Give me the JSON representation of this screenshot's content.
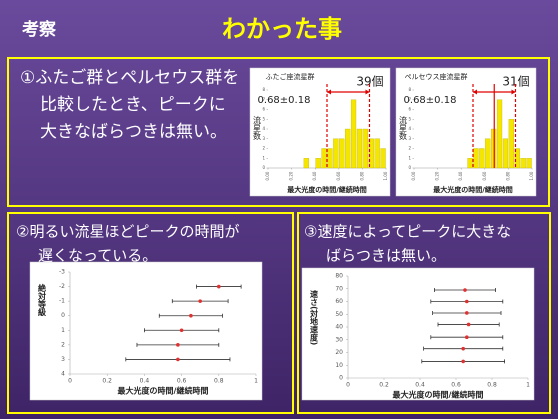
{
  "header": {
    "section": "考察",
    "title": "わかった事"
  },
  "panels": [
    {
      "lines": [
        "①ふたご群とペルセウス群を",
        "比較したとき、ピークに",
        "大きなばらつきは無い。"
      ]
    },
    {
      "lines": [
        "②明るい流星ほどピークの時間が",
        "遅くなっている。"
      ]
    },
    {
      "lines": [
        "③速度によってピークに大きな",
        "ばらつきは無い。"
      ]
    }
  ],
  "chart_data": [
    {
      "type": "histogram",
      "title": "ふたご座流星群",
      "count_label": "39個",
      "annotation": "0.68±0.18",
      "ylabel": "流星数",
      "xlabel": "最大光度の時間/継続時間",
      "bins": [
        0,
        0.05,
        0.1,
        0.15,
        0.2,
        0.25,
        0.3,
        0.35,
        0.4,
        0.45,
        0.5,
        0.55,
        0.6,
        0.65,
        0.7,
        0.75,
        0.8,
        0.85,
        0.9,
        0.95,
        1
      ],
      "counts": [
        0,
        0,
        0,
        0,
        0,
        0,
        1,
        0,
        1,
        2,
        2,
        3,
        3,
        4,
        7,
        4,
        4,
        3,
        3,
        2
      ],
      "color": "#f5e600",
      "xlim": [
        0,
        1
      ],
      "ylim": [
        0,
        8
      ],
      "yticks": [
        0,
        1,
        2,
        3,
        4,
        5,
        6,
        7,
        8
      ],
      "xticks": [
        {
          "value": 0,
          "label": "0.00"
        },
        {
          "value": 0.2,
          "label": "0.20"
        },
        {
          "value": 0.4,
          "label": "0.40"
        },
        {
          "value": 0.6,
          "label": "0.60"
        },
        {
          "value": 0.8,
          "label": "0.80"
        },
        {
          "value": 1,
          "label": "1.00"
        }
      ],
      "ref_lines": [
        0.5,
        0.86
      ],
      "ref_color": "#e00000"
    },
    {
      "type": "histogram",
      "title": "ペルセウス座流星群",
      "count_label": "31個",
      "annotation": "0.68±0.18",
      "ylabel": "流星数",
      "xlabel": "最大光度の時間/継続時間",
      "bins": [
        0,
        0.05,
        0.1,
        0.15,
        0.2,
        0.25,
        0.3,
        0.35,
        0.4,
        0.45,
        0.5,
        0.55,
        0.6,
        0.65,
        0.7,
        0.75,
        0.8,
        0.85,
        0.9,
        0.95,
        1
      ],
      "counts": [
        0,
        0,
        0,
        0,
        0,
        0,
        0,
        0,
        0,
        1,
        2,
        2,
        3,
        4,
        7,
        3,
        5,
        2,
        1,
        1
      ],
      "color": "#f5e600",
      "xlim": [
        0,
        1
      ],
      "ylim": [
        0,
        8
      ],
      "yticks": [
        0,
        1,
        2,
        3,
        4,
        5,
        6,
        7,
        8
      ],
      "xticks": [
        {
          "value": 0,
          "label": "0.00"
        },
        {
          "value": 0.2,
          "label": "0.20"
        },
        {
          "value": 0.4,
          "label": "0.40"
        },
        {
          "value": 0.6,
          "label": "0.60"
        },
        {
          "value": 0.8,
          "label": "0.80"
        },
        {
          "value": 1,
          "label": "1.00"
        }
      ],
      "ref_lines": [
        0.5,
        0.68,
        0.86
      ],
      "ref_color": "#e00000"
    },
    {
      "type": "errorbar",
      "ylabel": "絶対等級",
      "xlabel": "最大光度の時間/継続時間",
      "x": [
        0.8,
        0.7,
        0.65,
        0.6,
        0.58,
        0.58
      ],
      "xerr": [
        0.12,
        0.15,
        0.17,
        0.2,
        0.22,
        0.28
      ],
      "y": [
        -2,
        -1,
        0,
        1,
        2,
        3
      ],
      "color": "#e03030",
      "bar_color": "#333333",
      "xlim": [
        0,
        1
      ],
      "xticks": [
        0,
        0.2,
        0.4,
        0.6,
        0.8,
        1
      ],
      "ylim": [
        4,
        -3
      ],
      "yticks": [
        -3,
        -2,
        -1,
        0,
        1,
        2,
        3,
        4
      ]
    },
    {
      "type": "errorbar",
      "ylabel": "速さ(対地速度)",
      "xlabel": "最大光度の時間/継続時間",
      "x": [
        0.65,
        0.66,
        0.66,
        0.67,
        0.66,
        0.64,
        0.64
      ],
      "xerr": [
        0.17,
        0.2,
        0.19,
        0.17,
        0.2,
        0.22,
        0.23
      ],
      "y": [
        69,
        60,
        51,
        42,
        32,
        23,
        13
      ],
      "color": "#e03030",
      "bar_color": "#333333",
      "xlim": [
        0,
        1
      ],
      "xticks": [
        0,
        0.2,
        0.4,
        0.6,
        0.8,
        1
      ],
      "ylim": [
        0,
        80
      ],
      "yticks": [
        0,
        10,
        20,
        30,
        40,
        50,
        60,
        70,
        80
      ]
    }
  ]
}
